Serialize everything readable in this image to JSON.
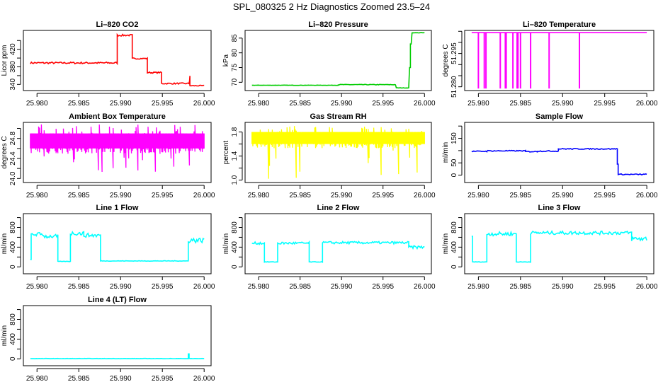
{
  "title": "SPL_080325  2 Hz Diagnostics Zoomed 23.5–24",
  "chart_data": [
    {
      "type": "line",
      "title": "Li–820 CO2",
      "ylabel": "Licor ppm",
      "color": "#ff0000",
      "xlim": [
        25.97837,
        26.00083
      ],
      "ylim": [
        326,
        463
      ],
      "yticks": [
        340,
        360,
        380,
        400,
        420,
        440
      ],
      "ylabels": [
        "340",
        "",
        "380",
        "",
        "420",
        ""
      ],
      "xticks": [
        25.98,
        25.985,
        25.99,
        25.995,
        26.0
      ],
      "xlabels": [
        "25.980",
        "25.985",
        "25.990",
        "25.995",
        "26.000"
      ],
      "segments": [
        [
          25.9792,
          25.9896,
          389,
          2
        ],
        [
          25.9896,
          25.9914,
          452,
          2
        ],
        [
          25.9914,
          25.9932,
          399,
          1.5
        ],
        [
          25.9932,
          25.9949,
          367,
          1.5
        ],
        [
          25.9949,
          25.9982,
          342,
          1.5
        ],
        [
          25.9982,
          25.9983,
          350,
          12
        ],
        [
          25.9983,
          26.0,
          337,
          1
        ]
      ]
    },
    {
      "type": "line",
      "title": "Li–820 Pressure",
      "ylabel": "kPa",
      "color": "#00cc00",
      "xlim": [
        25.97837,
        26.00083
      ],
      "ylim": [
        67.2,
        87.6
      ],
      "yticks": [
        70,
        75,
        80,
        85
      ],
      "ylabels": [
        "70",
        "75",
        "80",
        "85"
      ],
      "xticks": [
        25.98,
        25.985,
        25.99,
        25.995,
        26.0
      ],
      "xlabels": [
        "25.980",
        "25.985",
        "25.990",
        "25.995",
        "26.000"
      ],
      "segments": [
        [
          25.9792,
          25.9896,
          69,
          0.05
        ],
        [
          25.9896,
          25.9965,
          69.2,
          0.1
        ],
        [
          25.9966,
          25.9981,
          68.1,
          0.05
        ],
        [
          25.9982,
          25.9983,
          75,
          0
        ],
        [
          25.9983,
          25.9984,
          83,
          0
        ],
        [
          25.9985,
          26.0,
          86.8,
          0.05
        ]
      ]
    },
    {
      "type": "line",
      "title": "Li–820 Temperature",
      "ylabel": "degrees C",
      "color": "#ff00ff",
      "xlim": [
        25.97837,
        26.00083
      ],
      "ylim": [
        51.2783,
        51.3054
      ],
      "yticks": [
        51.28,
        51.285,
        51.29,
        51.295,
        51.3,
        51.305
      ],
      "ylabels": [
        "51.280",
        "",
        "",
        "51.295",
        "",
        ""
      ],
      "xticks": [
        25.98,
        25.985,
        25.99,
        25.995,
        26.0
      ],
      "xlabels": [
        "25.980",
        "25.985",
        "25.990",
        "25.995",
        "26.000"
      ],
      "segments": [
        [
          25.9792,
          26.0,
          51.3044,
          0
        ]
      ],
      "spikes": [
        25.98,
        25.9807,
        25.9809,
        25.9826,
        25.9832,
        25.9833,
        25.9841,
        25.9846,
        25.9847,
        25.985,
        25.9862,
        25.9884,
        25.992
      ],
      "spike_to": 51.2792
    },
    {
      "type": "line",
      "title": "Ambient Box Temperature",
      "ylabel": "degrees C",
      "color": "#ff00ff",
      "xlim": [
        25.97837,
        26.00083
      ],
      "ylim": [
        23.92,
        25.12
      ],
      "yticks": [
        24.0,
        24.2,
        24.4,
        24.6,
        24.8,
        25.0
      ],
      "ylabels": [
        "24.0",
        "",
        "24.4",
        "",
        "24.8",
        ""
      ],
      "xticks": [
        25.98,
        25.985,
        25.99,
        25.995,
        26.0
      ],
      "xlabels": [
        "25.980",
        "25.985",
        "25.990",
        "25.995",
        "26.000"
      ],
      "band": {
        "range": [
          25.9792,
          26.0
        ],
        "core": [
          24.6,
          24.9
        ],
        "min": 24.0,
        "max": 25.1
      }
    },
    {
      "type": "line",
      "title": "Gas Stream RH",
      "ylabel": "percent",
      "color": "#ffff00",
      "xlim": [
        25.97837,
        26.00083
      ],
      "ylim": [
        0.96,
        1.96
      ],
      "yticks": [
        1.0,
        1.2,
        1.4,
        1.6,
        1.8
      ],
      "ylabels": [
        "1.0",
        "",
        "1.4",
        "",
        "1.8"
      ],
      "xticks": [
        25.98,
        25.985,
        25.99,
        25.995,
        26.0
      ],
      "xlabels": [
        "25.980",
        "25.985",
        "25.990",
        "25.995",
        "26.000"
      ],
      "band": {
        "range": [
          25.9792,
          26.0
        ],
        "core": [
          1.6,
          1.8
        ],
        "min": 1.0,
        "max": 1.9
      }
    },
    {
      "type": "line",
      "title": "Sample Flow",
      "ylabel": "ml/min",
      "color": "#0000ff",
      "xlim": [
        25.97837,
        26.00083
      ],
      "ylim": [
        -30,
        215
      ],
      "yticks": [
        0,
        50,
        100,
        150,
        200
      ],
      "ylabels": [
        "0",
        "50",
        "",
        "150",
        ""
      ],
      "xticks": [
        25.98,
        25.985,
        25.99,
        25.995,
        26.0
      ],
      "xlabels": [
        "25.980",
        "25.985",
        "25.990",
        "25.995",
        "26.000"
      ],
      "segments": [
        [
          25.9792,
          25.981,
          97,
          2
        ],
        [
          25.981,
          25.9856,
          99,
          2
        ],
        [
          25.9856,
          25.987,
          96,
          2
        ],
        [
          25.987,
          25.9895,
          98,
          2
        ],
        [
          25.9895,
          25.9965,
          107,
          2
        ],
        [
          25.9965,
          25.9966,
          45,
          0
        ],
        [
          25.9966,
          26.0,
          3,
          2
        ]
      ]
    },
    {
      "type": "line",
      "title": "Line 1 Flow",
      "ylabel": "ml/min",
      "color": "#00ffff",
      "xlim": [
        25.97837,
        26.00083
      ],
      "ylim": [
        -140,
        1080
      ],
      "yticks": [
        0,
        200,
        400,
        600,
        800,
        1000
      ],
      "ylabels": [
        "0",
        "",
        "400",
        "",
        "800",
        ""
      ],
      "xticks": [
        25.98,
        25.985,
        25.99,
        25.995,
        26.0
      ],
      "xlabels": [
        "25.980",
        "25.985",
        "25.990",
        "25.995",
        "26.000"
      ],
      "segments": [
        [
          25.9792,
          25.9793,
          150,
          0
        ],
        [
          25.9793,
          25.9808,
          660,
          40
        ],
        [
          25.9808,
          25.9825,
          620,
          40
        ],
        [
          25.9825,
          25.984,
          110,
          5
        ],
        [
          25.984,
          25.9856,
          680,
          40
        ],
        [
          25.9856,
          25.9876,
          640,
          40
        ],
        [
          25.9876,
          25.9981,
          120,
          5
        ],
        [
          25.9981,
          26.0,
          540,
          50
        ]
      ]
    },
    {
      "type": "line",
      "title": "Line 2 Flow",
      "ylabel": "ml/min",
      "color": "#00ffff",
      "xlim": [
        25.97837,
        26.00083
      ],
      "ylim": [
        -140,
        1080
      ],
      "yticks": [
        0,
        200,
        400,
        600,
        800,
        1000
      ],
      "ylabels": [
        "0",
        "",
        "400",
        "",
        "800",
        ""
      ],
      "xticks": [
        25.98,
        25.985,
        25.99,
        25.995,
        26.0
      ],
      "xlabels": [
        "25.980",
        "25.985",
        "25.990",
        "25.995",
        "26.000"
      ],
      "segments": [
        [
          25.9792,
          25.9807,
          480,
          25
        ],
        [
          25.9807,
          25.9823,
          100,
          5
        ],
        [
          25.9823,
          25.9861,
          480,
          25
        ],
        [
          25.9861,
          25.9877,
          100,
          5
        ],
        [
          25.9877,
          25.9981,
          490,
          25
        ],
        [
          25.9981,
          26.0,
          400,
          30
        ]
      ]
    },
    {
      "type": "line",
      "title": "Line 3 Flow",
      "ylabel": "ml/min",
      "color": "#00ffff",
      "xlim": [
        25.97837,
        26.00083
      ],
      "ylim": [
        -140,
        1080
      ],
      "yticks": [
        0,
        200,
        400,
        600,
        800,
        1000
      ],
      "ylabels": [
        "0",
        "",
        "400",
        "",
        "800",
        ""
      ],
      "xticks": [
        25.98,
        25.985,
        25.99,
        25.995,
        26.0
      ],
      "xlabels": [
        "25.980",
        "25.985",
        "25.990",
        "25.995",
        "26.000"
      ],
      "segments": [
        [
          25.9792,
          25.9793,
          620,
          0
        ],
        [
          25.9793,
          25.981,
          100,
          5
        ],
        [
          25.981,
          25.9845,
          670,
          40
        ],
        [
          25.9845,
          25.9862,
          100,
          5
        ],
        [
          25.9862,
          25.9982,
          690,
          35
        ],
        [
          25.9982,
          26.0,
          570,
          50
        ]
      ]
    },
    {
      "type": "line",
      "title": "Line 4 (LT) Flow",
      "ylabel": "ml/min",
      "color": "#00ffff",
      "xlim": [
        25.97837,
        26.00083
      ],
      "ylim": [
        -140,
        1080
      ],
      "yticks": [
        0,
        200,
        400,
        600,
        800,
        1000
      ],
      "ylabels": [
        "0",
        "",
        "400",
        "",
        "800",
        ""
      ],
      "xticks": [
        25.98,
        25.985,
        25.99,
        25.995,
        26.0
      ],
      "xlabels": [
        "25.980",
        "25.985",
        "25.990",
        "25.995",
        "26.000"
      ],
      "segments": [
        [
          25.9792,
          25.9981,
          5,
          3
        ],
        [
          25.9981,
          25.9982,
          100,
          0
        ],
        [
          25.9982,
          26.0,
          5,
          3
        ]
      ]
    }
  ]
}
